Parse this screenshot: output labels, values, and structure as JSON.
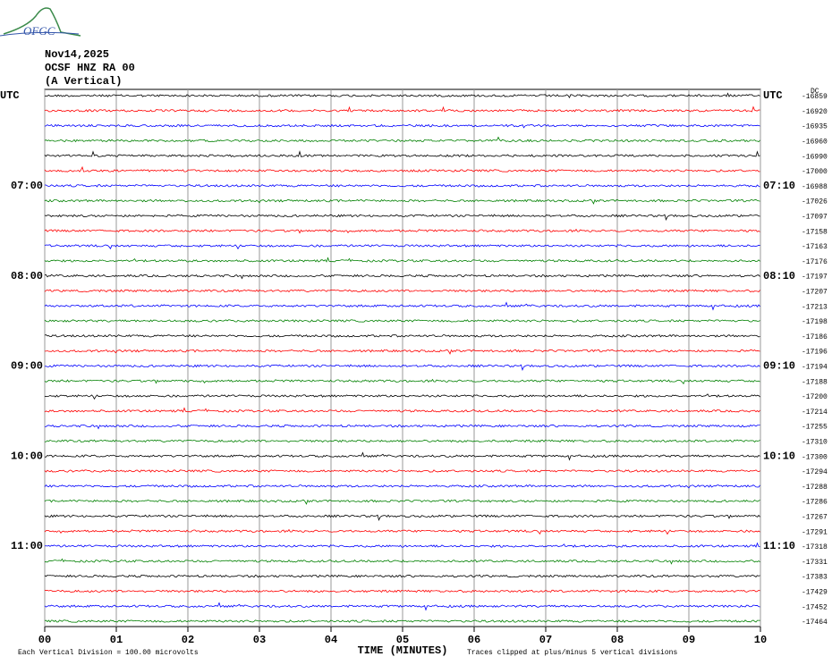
{
  "logo": "OFGC",
  "chart_data": {
    "type": "helicorder",
    "title": "Nov14,2025",
    "subtitle": "OCSF HNZ RA 00",
    "component": "(A Vertical)",
    "xlabel": "TIME (MINUTES)",
    "footnote_left": "Each Vertical Division =  100.00 microvolts",
    "footnote_right": "Traces clipped at plus/minus 5 vertical divisions",
    "offset_header": "DC",
    "xlim": [
      0,
      10
    ],
    "xticks": [
      {
        "value": 0,
        "label": "00"
      },
      {
        "value": 1,
        "label": "01"
      },
      {
        "value": 2,
        "label": "02"
      },
      {
        "value": 3,
        "label": "03"
      },
      {
        "value": 4,
        "label": "04"
      },
      {
        "value": 5,
        "label": "05"
      },
      {
        "value": 6,
        "label": "06"
      },
      {
        "value": 7,
        "label": "07"
      },
      {
        "value": 8,
        "label": "08"
      },
      {
        "value": 9,
        "label": "09"
      },
      {
        "value": 10,
        "label": "10"
      }
    ],
    "grid": true,
    "colors": [
      "#000000",
      "#ff0000",
      "#0000ff",
      "#008000"
    ],
    "left_labels": [
      "UTC",
      null,
      null,
      null,
      null,
      null,
      "07:00",
      null,
      null,
      null,
      null,
      null,
      "08:00",
      null,
      null,
      null,
      null,
      null,
      "09:00",
      null,
      null,
      null,
      null,
      null,
      "10:00",
      null,
      null,
      null,
      null,
      null,
      "11:00",
      null,
      null,
      null,
      null,
      null
    ],
    "right_labels": [
      "UTC",
      null,
      null,
      null,
      null,
      null,
      "07:10",
      null,
      null,
      null,
      null,
      null,
      "08:10",
      null,
      null,
      null,
      null,
      null,
      "09:10",
      null,
      null,
      null,
      null,
      null,
      "10:10",
      null,
      null,
      null,
      null,
      null,
      "11:10",
      null,
      null,
      null,
      null,
      null
    ],
    "offsets": [
      -16859,
      -16920,
      -16935,
      -16960,
      -16990,
      -17000,
      -16988,
      -17026,
      -17097,
      -17158,
      -17163,
      -17176,
      -17197,
      -17207,
      -17213,
      -17198,
      -17186,
      -17196,
      -17194,
      -17188,
      -17200,
      -17214,
      -17255,
      -17310,
      -17300,
      -17294,
      -17288,
      -17286,
      -17267,
      -17291,
      -17318,
      -17331,
      -17383,
      -17429,
      -17452,
      -17464
    ]
  }
}
